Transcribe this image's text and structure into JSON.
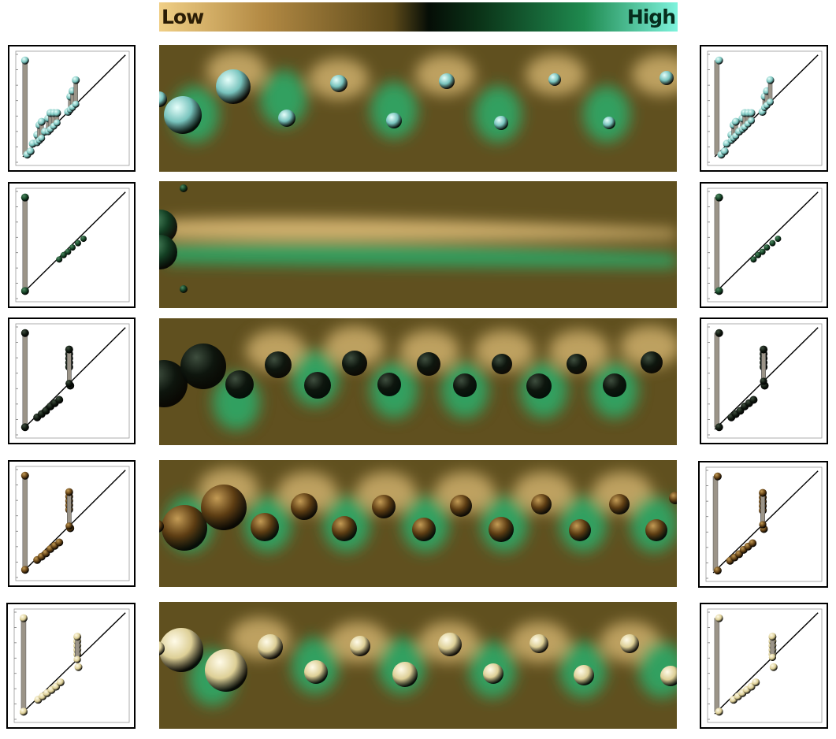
{
  "colorbar": {
    "low_label": "Low",
    "high_label": "High"
  },
  "colors": {
    "field_base": "#60501f",
    "field_low": "#e6c37c",
    "field_high": "#2fa866",
    "stem": "#9b9488"
  },
  "rows": [
    {
      "id": "row-1",
      "ball_color": "#78c3bd",
      "ball_highlight": "#e6fffb"
    },
    {
      "id": "row-2",
      "ball_color": "#144024",
      "ball_highlight": "#4e8a62"
    },
    {
      "id": "row-3",
      "ball_color": "#0e160e",
      "ball_highlight": "#3e4e3e"
    },
    {
      "id": "row-4",
      "ball_color": "#5d3d13",
      "ball_highlight": "#c39b55"
    },
    {
      "id": "row-5",
      "ball_color": "#ddcf96",
      "ball_highlight": "#fffbe8"
    }
  ]
}
